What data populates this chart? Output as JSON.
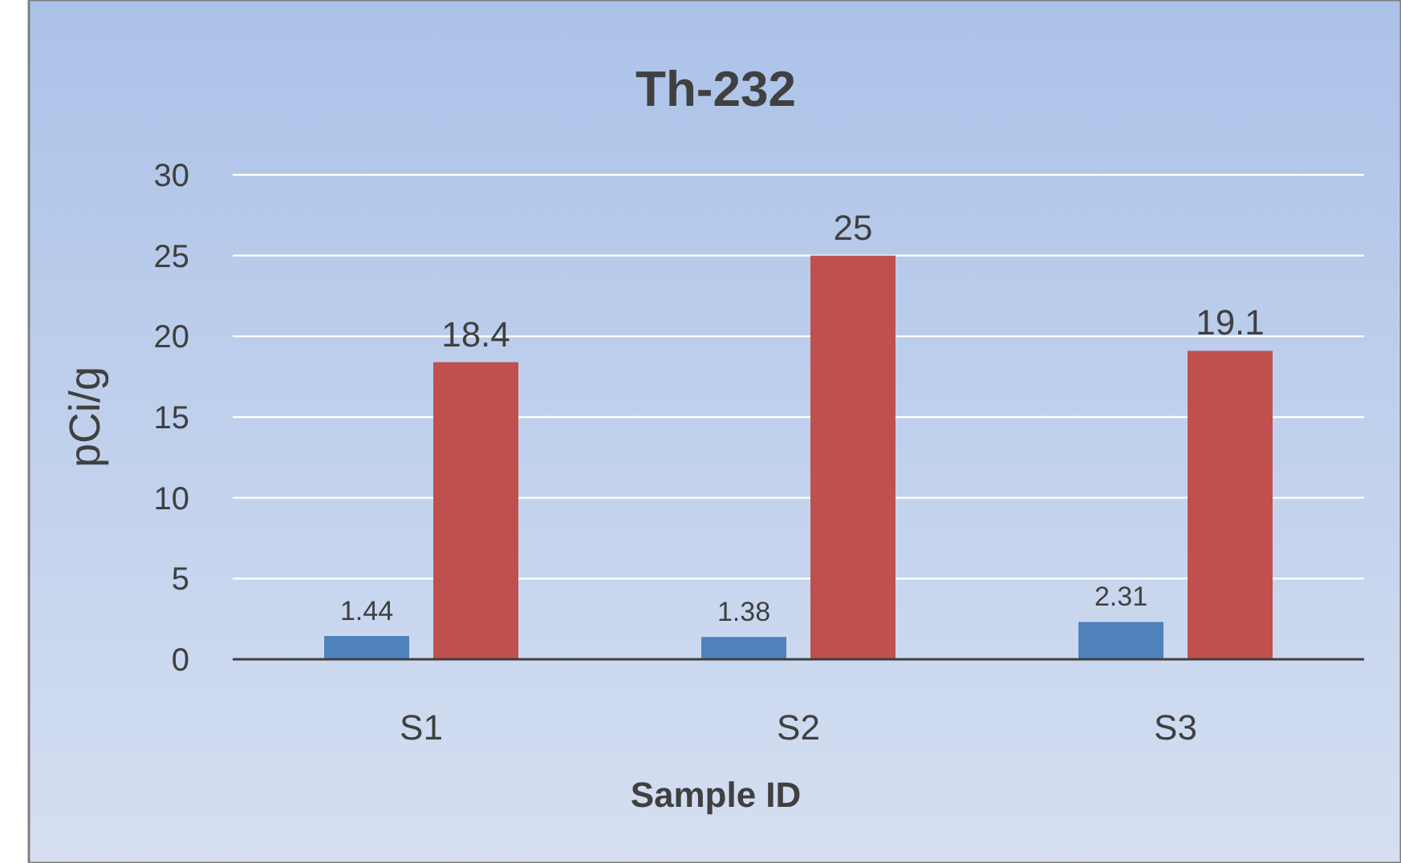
{
  "chart_data": {
    "type": "bar",
    "title": "Th-232",
    "xlabel": "Sample ID",
    "ylabel": "pCi/g",
    "categories": [
      "S1",
      "S2",
      "S3"
    ],
    "series": [
      {
        "color": "#4f81bd",
        "values": [
          1.44,
          1.38,
          2.31
        ]
      },
      {
        "color": "#c0504d",
        "values": [
          18.4,
          25,
          19.1
        ]
      }
    ],
    "ylim": [
      0,
      30
    ],
    "yticks": [
      0,
      5,
      10,
      15,
      20,
      25,
      30
    ],
    "grid": "y",
    "data_labels": true
  }
}
